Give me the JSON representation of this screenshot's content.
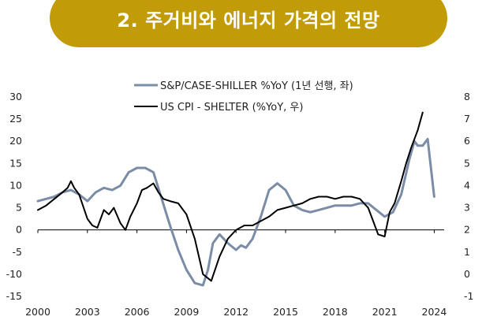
{
  "header": {
    "title": "2. 주거비와 에너지 가격의 전망"
  },
  "colors": {
    "banner": "#c19b08",
    "sp_case_shiller": "#7a8ca6",
    "us_cpi_shelter": "#000000"
  },
  "chart_data": {
    "type": "line",
    "title": "",
    "xlabel": "",
    "ylabel": "",
    "x_ticks": [
      "2000",
      "2003",
      "2006",
      "2009",
      "2012",
      "2015",
      "2018",
      "2021",
      "2024"
    ],
    "ylim_left": [
      -15,
      30
    ],
    "ylim_right": [
      -1,
      8
    ],
    "yticks_left": [
      -15,
      -10,
      -5,
      0,
      5,
      10,
      15,
      20,
      25,
      30
    ],
    "yticks_right": [
      -1,
      0,
      1,
      2,
      3,
      4,
      5,
      6,
      7,
      8
    ],
    "legend_position": "top-center",
    "series": [
      {
        "name": "S&P/CASE-SHILLER %YoY (1년 선행, 좌)",
        "axis": "left",
        "x": [
          2000.0,
          2000.5,
          2001.0,
          2001.5,
          2002.0,
          2002.5,
          2003.0,
          2003.5,
          2004.0,
          2004.5,
          2005.0,
          2005.5,
          2006.0,
          2006.5,
          2007.0,
          2007.5,
          2008.0,
          2008.5,
          2009.0,
          2009.5,
          2010.0,
          2010.3,
          2010.6,
          2011.0,
          2011.5,
          2012.0,
          2012.3,
          2012.6,
          2013.0,
          2013.5,
          2014.0,
          2014.5,
          2015.0,
          2015.5,
          2016.0,
          2016.5,
          2017.0,
          2017.5,
          2018.0,
          2018.5,
          2019.0,
          2019.5,
          2020.0,
          2020.5,
          2021.0,
          2021.5,
          2022.0,
          2022.5,
          2022.8,
          2023.0,
          2023.3,
          2023.6,
          2024.0
        ],
        "y": [
          6.5,
          7.0,
          7.5,
          8.5,
          9.0,
          8.0,
          6.5,
          8.5,
          9.5,
          9.0,
          10.0,
          13.0,
          14.0,
          14.0,
          13.0,
          7.0,
          1.0,
          -4.5,
          -9.0,
          -12.0,
          -12.5,
          -9.0,
          -3.0,
          -1.0,
          -3.0,
          -4.5,
          -3.5,
          -4.0,
          -2.0,
          3.0,
          9.0,
          10.5,
          9.0,
          5.5,
          4.5,
          4.0,
          4.5,
          5.0,
          5.5,
          5.5,
          5.5,
          6.0,
          6.0,
          4.5,
          3.0,
          4.0,
          8.0,
          16.0,
          20.0,
          19.0,
          19.0,
          20.5,
          7.5
        ]
      },
      {
        "name": "US CPI - SHELTER (%YoY, 우)",
        "axis": "right",
        "x": [
          2000.0,
          2000.5,
          2001.0,
          2001.5,
          2001.8,
          2002.0,
          2002.2,
          2002.5,
          2003.0,
          2003.3,
          2003.6,
          2004.0,
          2004.3,
          2004.6,
          2005.0,
          2005.3,
          2005.6,
          2006.0,
          2006.3,
          2006.6,
          2007.0,
          2007.3,
          2007.6,
          2008.0,
          2008.5,
          2009.0,
          2009.5,
          2010.0,
          2010.5,
          2011.0,
          2011.5,
          2012.0,
          2012.5,
          2013.0,
          2013.5,
          2014.0,
          2014.5,
          2015.0,
          2015.5,
          2016.0,
          2016.5,
          2017.0,
          2017.5,
          2018.0,
          2018.5,
          2019.0,
          2019.5,
          2020.0,
          2020.3,
          2020.6,
          2021.0,
          2021.3,
          2021.6,
          2022.0,
          2022.3,
          2022.6,
          2023.0,
          2023.3
        ],
        "y": [
          2.9,
          3.1,
          3.4,
          3.7,
          3.9,
          4.2,
          3.9,
          3.6,
          2.5,
          2.2,
          2.1,
          2.9,
          2.7,
          3.0,
          2.3,
          2.0,
          2.6,
          3.2,
          3.8,
          3.9,
          4.1,
          3.7,
          3.4,
          3.3,
          3.2,
          2.7,
          1.6,
          0.0,
          -0.3,
          0.8,
          1.6,
          2.0,
          2.2,
          2.2,
          2.4,
          2.6,
          2.9,
          3.0,
          3.1,
          3.2,
          3.4,
          3.5,
          3.5,
          3.4,
          3.5,
          3.5,
          3.4,
          3.0,
          2.4,
          1.8,
          1.7,
          2.8,
          3.2,
          4.2,
          5.0,
          5.7,
          6.5,
          7.3
        ]
      }
    ]
  }
}
